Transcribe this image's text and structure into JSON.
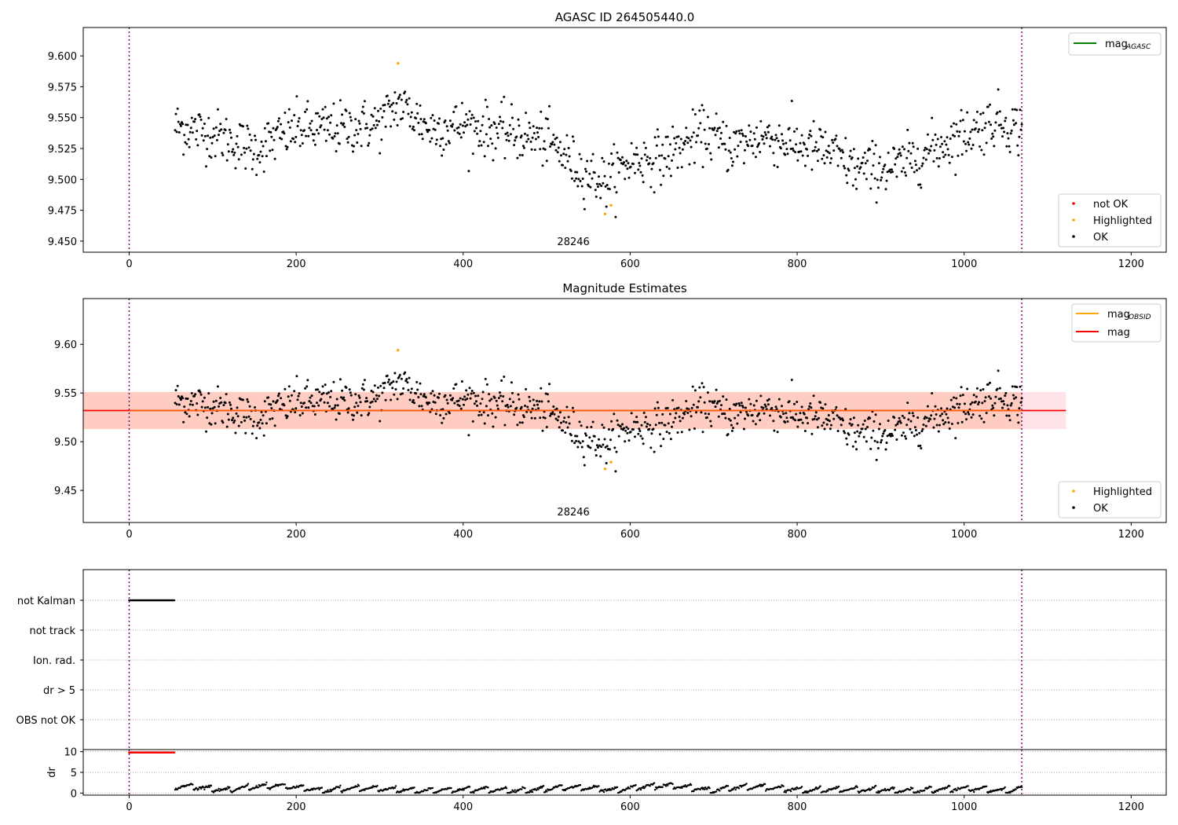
{
  "colors": {
    "ok": "#000000",
    "highlighted": "#ffa500",
    "not_ok": "#ff0000",
    "agasc": "#008000",
    "obsid": "#ffa500",
    "mag": "#ff0000",
    "vline": "#800080",
    "band_red": "#ffc0cb",
    "band_orange": "#ffa07a",
    "grid": "#b0b0b0"
  },
  "chart_data": [
    {
      "type": "scatter",
      "title": "AGASC ID 264505440.0",
      "annotation": "28246",
      "xlim": [
        -55,
        1242
      ],
      "ylim": [
        9.441,
        9.623
      ],
      "x_ticks": [
        0,
        200,
        400,
        600,
        800,
        1000,
        1200
      ],
      "x_tick_labels": [
        "0",
        "200",
        "400",
        "600",
        "800",
        "1000",
        "1200"
      ],
      "y_ticks": [
        9.45,
        9.475,
        9.5,
        9.525,
        9.55,
        9.575,
        9.6
      ],
      "y_tick_labels": [
        "9.450",
        "9.475",
        "9.500",
        "9.525",
        "9.550",
        "9.575",
        "9.600"
      ],
      "vlines": [
        0,
        1069
      ],
      "series_ok": {
        "name": "OK",
        "x_range": [
          55,
          1069
        ],
        "n_points": 1010,
        "approx_mean": 9.532
      },
      "highlighted_points": [
        [
          322,
          9.594
        ],
        [
          570,
          9.472
        ],
        [
          577,
          9.479
        ]
      ],
      "legend_lines": [
        {
          "name": "mag",
          "sub": "AGASC",
          "color": "#008000"
        }
      ],
      "legend_markers": [
        {
          "name": "not OK",
          "color": "#ff0000"
        },
        {
          "name": "Highlighted",
          "color": "#ffa500"
        },
        {
          "name": "OK",
          "color": "#000000"
        }
      ]
    },
    {
      "type": "scatter",
      "title": "Magnitude Estimates",
      "annotation": "28246",
      "xlim": [
        -55,
        1242
      ],
      "ylim": [
        9.417,
        9.647
      ],
      "x_ticks": [
        0,
        200,
        400,
        600,
        800,
        1000,
        1200
      ],
      "x_tick_labels": [
        "0",
        "200",
        "400",
        "600",
        "800",
        "1000",
        "1200"
      ],
      "y_ticks": [
        9.45,
        9.5,
        9.55,
        9.6
      ],
      "y_tick_labels": [
        "9.45",
        "9.50",
        "9.55",
        "9.60"
      ],
      "vlines": [
        0,
        1069
      ],
      "mag_line": 9.532,
      "band_red": [
        9.513,
        9.551
      ],
      "band_red_x": [
        -55,
        1122
      ],
      "band_orange": [
        9.513,
        9.551
      ],
      "band_orange_x": [
        -55,
        1069
      ],
      "highlighted_points": [
        [
          322,
          9.594
        ],
        [
          570,
          9.472
        ],
        [
          577,
          9.479
        ]
      ],
      "legend_lines": [
        {
          "name": "mag",
          "sub": "OBSID",
          "color": "#ffa500"
        },
        {
          "name": "mag",
          "sub": "",
          "color": "#ff0000"
        }
      ],
      "legend_markers": [
        {
          "name": "Highlighted",
          "color": "#ffa500"
        },
        {
          "name": "OK",
          "color": "#000000"
        }
      ]
    },
    {
      "type": "scatter",
      "title": "",
      "xlim": [
        -55,
        1242
      ],
      "categories": [
        "not Kalman",
        "not track",
        "Ion. rad.",
        "dr > 5",
        "OBS not OK"
      ],
      "flagged_ranges": [
        {
          "category": "not Kalman",
          "x_range": [
            0,
            55
          ]
        }
      ],
      "vlines": [
        0,
        1069
      ]
    },
    {
      "type": "scatter",
      "title": "",
      "ylabel": "dr",
      "xlim": [
        -55,
        1242
      ],
      "ylim": [
        -0.5,
        10.5
      ],
      "x_ticks": [
        0,
        200,
        400,
        600,
        800,
        1000,
        1200
      ],
      "x_tick_labels": [
        "0",
        "200",
        "400",
        "600",
        "800",
        "1000",
        "1200"
      ],
      "y_ticks": [
        0,
        5,
        10
      ],
      "y_tick_labels": [
        "0",
        "5",
        "10"
      ],
      "vlines": [
        0,
        1069
      ],
      "red_points": {
        "x_range": [
          0,
          55
        ],
        "y": 9.8
      },
      "black_points": {
        "x_range": [
          55,
          1069
        ],
        "y_range": [
          0,
          2.7
        ]
      }
    }
  ]
}
